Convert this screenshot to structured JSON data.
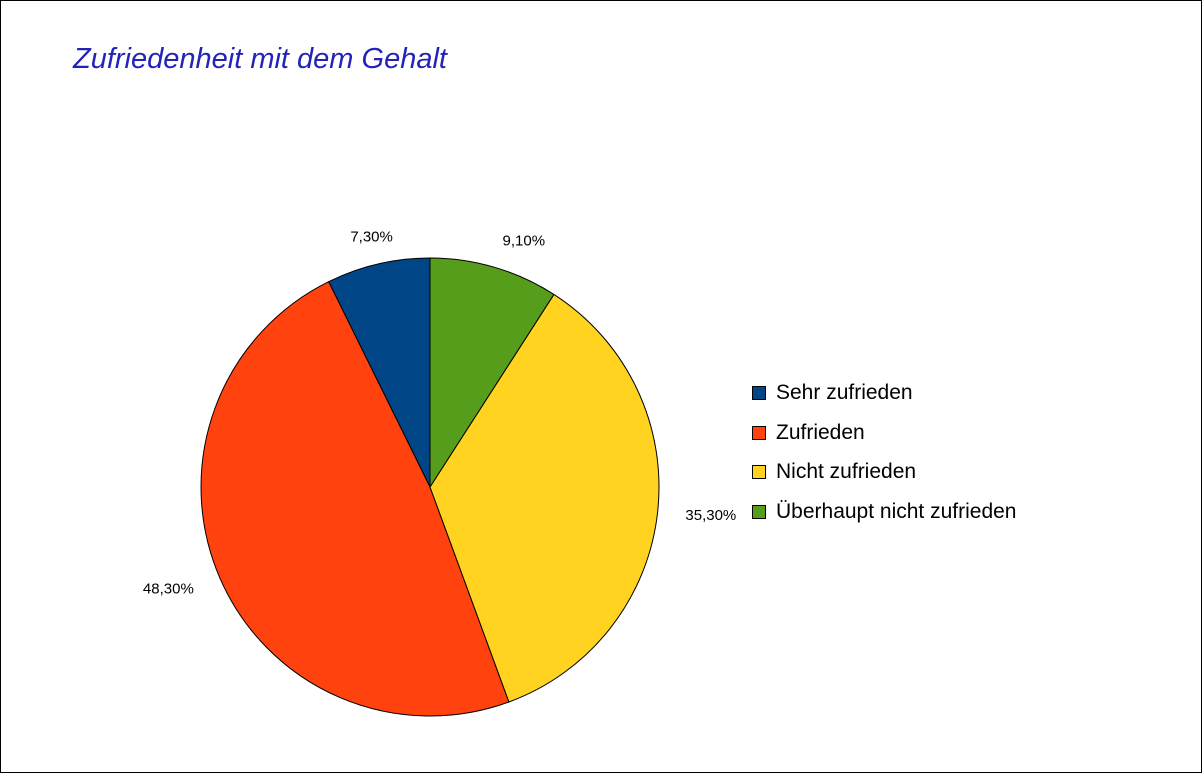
{
  "chart_data": {
    "type": "pie",
    "title": "Zufriedenheit mit dem Gehalt",
    "categories": [
      "Sehr zufrieden",
      "Zufrieden",
      "Nicht zufrieden",
      "Überhaupt nicht zufrieden"
    ],
    "values": [
      7.3,
      48.3,
      35.3,
      9.1
    ],
    "value_labels": [
      "7,30%",
      "48,30%",
      "35,30%",
      "9,10%"
    ],
    "colors": [
      "#004586",
      "#ff420e",
      "#ffd320",
      "#579d1c"
    ],
    "legend_placement": "right"
  }
}
